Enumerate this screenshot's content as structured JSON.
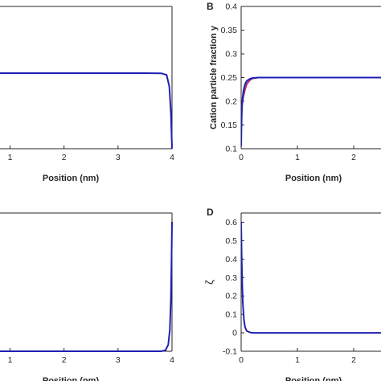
{
  "chart_data": [
    {
      "panel": "",
      "type": "line",
      "xlabel": "Position (nm)",
      "ylabel": "",
      "xlim": [
        0,
        4
      ],
      "x_ticks": [
        "1",
        "2",
        "3",
        "4"
      ],
      "y_ticks": [],
      "series": [
        {
          "color": "#1f1fb4",
          "x": [
            0,
            0.5,
            1,
            1.5,
            2,
            2.5,
            3,
            3.5,
            3.8,
            3.9,
            3.95,
            3.98,
            4.0
          ],
          "y": [
            0.85,
            0.85,
            0.85,
            0.85,
            0.85,
            0.85,
            0.85,
            0.85,
            0.848,
            0.83,
            0.7,
            0.4,
            0.0
          ]
        }
      ]
    },
    {
      "panel": "B",
      "type": "line",
      "xlabel": "Position (nm)",
      "ylabel": "Cation particle fraction y",
      "xlim": [
        0,
        3
      ],
      "ylim": [
        0.1,
        0.4
      ],
      "x_ticks": [
        "0",
        "1",
        "2"
      ],
      "y_ticks": [
        "0.1",
        "0.15",
        "0.2",
        "0.25",
        "0.3",
        "0.35",
        "0.4"
      ],
      "series": [
        {
          "color": "#c0306a",
          "x": [
            0,
            0.01,
            0.02,
            0.04,
            0.07,
            0.1,
            0.15,
            0.2,
            0.3,
            0.5,
            1,
            2,
            3
          ],
          "y": [
            0.175,
            0.185,
            0.195,
            0.21,
            0.225,
            0.236,
            0.244,
            0.248,
            0.25,
            0.25,
            0.25,
            0.25,
            0.25
          ]
        },
        {
          "color": "#1f1fb4",
          "x": [
            0,
            0.005,
            0.01,
            0.02,
            0.04,
            0.07,
            0.1,
            0.15,
            0.2,
            0.3,
            0.5,
            1,
            2,
            3
          ],
          "y": [
            0.105,
            0.14,
            0.17,
            0.2,
            0.222,
            0.236,
            0.243,
            0.247,
            0.249,
            0.25,
            0.25,
            0.25,
            0.25,
            0.25
          ]
        }
      ]
    },
    {
      "panel": "",
      "type": "line",
      "xlabel": "Position (nm)",
      "ylabel": "",
      "xlim": [
        0,
        4
      ],
      "x_ticks": [
        "1",
        "2",
        "3",
        "4"
      ],
      "y_ticks": [],
      "series": [
        {
          "color": "#1f1fb4",
          "x": [
            0,
            1,
            2,
            3,
            3.8,
            3.88,
            3.93,
            3.96,
            3.98,
            3.99,
            4.0
          ],
          "y": [
            0,
            0,
            0,
            0,
            0,
            0.005,
            0.03,
            0.1,
            0.25,
            0.4,
            0.6
          ]
        }
      ]
    },
    {
      "panel": "D",
      "type": "line",
      "xlabel": "Position (nm)",
      "ylabel": "ζ",
      "xlim": [
        0,
        3
      ],
      "ylim": [
        -0.1,
        0.65
      ],
      "x_ticks": [
        "0",
        "1",
        "2"
      ],
      "y_ticks": [
        "-0.1",
        "0",
        "0.1",
        "0.2",
        "0.3",
        "0.4",
        "0.5",
        "0.6"
      ],
      "series": [
        {
          "color": "#1f1fb4",
          "x": [
            0,
            0.005,
            0.01,
            0.02,
            0.03,
            0.05,
            0.07,
            0.1,
            0.15,
            0.2,
            0.5,
            1,
            2,
            3
          ],
          "y": [
            0.6,
            0.5,
            0.4,
            0.26,
            0.16,
            0.07,
            0.03,
            0.01,
            0.003,
            0,
            0,
            0,
            0,
            0
          ]
        }
      ]
    }
  ]
}
